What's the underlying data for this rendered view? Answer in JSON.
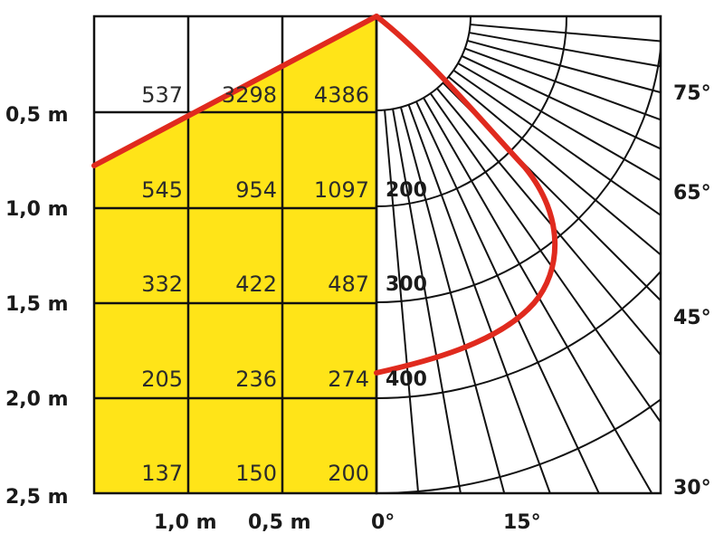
{
  "colors": {
    "fill": "#ffe418",
    "grid": "#111111",
    "curve": "#e02a1e",
    "text": "#2b2b2b"
  },
  "illuminance_grid": [
    [
      "537",
      "3298",
      "4386"
    ],
    [
      "545",
      "954",
      "1097"
    ],
    [
      "332",
      "422",
      "487"
    ],
    [
      "205",
      "236",
      "274"
    ],
    [
      "137",
      "150",
      "200"
    ]
  ],
  "distance_labels": [
    "0,5 m",
    "1,0 m",
    "1,5 m",
    "2,0 m",
    "2,5 m"
  ],
  "width_labels": [
    "1,0 m",
    "0,5 m"
  ],
  "ring_labels": [
    "200",
    "300",
    "400"
  ],
  "angle_labels": {
    "bottom": [
      "0°",
      "15°"
    ],
    "right": [
      "75°",
      "65°",
      "45°",
      "30°"
    ]
  }
}
